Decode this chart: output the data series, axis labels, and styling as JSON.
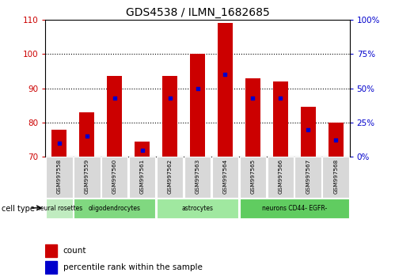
{
  "title": "GDS4538 / ILMN_1682685",
  "samples": [
    "GSM997558",
    "GSM997559",
    "GSM997560",
    "GSM997561",
    "GSM997562",
    "GSM997563",
    "GSM997564",
    "GSM997565",
    "GSM997566",
    "GSM997567",
    "GSM997568"
  ],
  "count_values": [
    78,
    83,
    93.5,
    74.5,
    93.5,
    100,
    109,
    93,
    92,
    84.5,
    80
  ],
  "percentile_values": [
    10,
    15,
    43,
    5,
    43,
    50,
    60,
    43,
    43,
    20,
    12
  ],
  "cell_groups": [
    {
      "label": "neural rosettes",
      "start": 0,
      "end": 1,
      "color": "#c0ecc0"
    },
    {
      "label": "oligodendrocytes",
      "start": 1,
      "end": 4,
      "color": "#80d880"
    },
    {
      "label": "astrocytes",
      "start": 4,
      "end": 7,
      "color": "#a0e8a0"
    },
    {
      "label": "neurons CD44- EGFR-",
      "start": 7,
      "end": 11,
      "color": "#60cc60"
    }
  ],
  "ylim_left": [
    70,
    110
  ],
  "ylim_right": [
    0,
    100
  ],
  "yticks_left": [
    70,
    80,
    90,
    100,
    110
  ],
  "yticks_right": [
    0,
    25,
    50,
    75,
    100
  ],
  "ytick_labels_right": [
    "0%",
    "25%",
    "50%",
    "75%",
    "100%"
  ],
  "bar_color": "#cc0000",
  "dot_color": "#0000cc",
  "bar_width": 0.55,
  "tick_label_color_left": "#cc0000",
  "tick_label_color_right": "#0000cc"
}
